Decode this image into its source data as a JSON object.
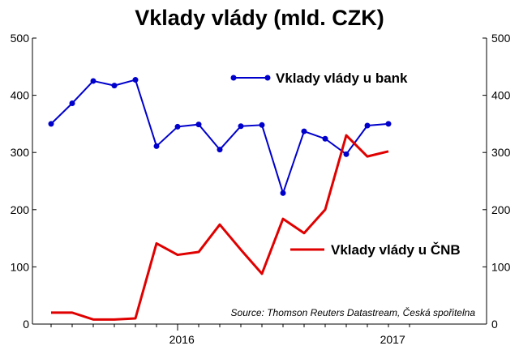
{
  "chart_data": {
    "type": "line",
    "title": "Vklady vlády (mld. CZK)",
    "xlabel": "",
    "ylabel": "",
    "ylim": [
      0,
      500
    ],
    "yticks": [
      0,
      100,
      200,
      300,
      400,
      500
    ],
    "xticks": [
      "2016",
      "2017"
    ],
    "grid": false,
    "source": "Source: Thomson Reuters Datastream, Česká spořitelna",
    "x": [
      "2015-07",
      "2015-08",
      "2015-09",
      "2015-10",
      "2015-11",
      "2015-12",
      "2016-01",
      "2016-02",
      "2016-03",
      "2016-04",
      "2016-05",
      "2016-06",
      "2016-07",
      "2016-08",
      "2016-09",
      "2016-10",
      "2016-11",
      "2016-12"
    ],
    "series": [
      {
        "name": "Vklady vlády u bank",
        "color": "#0000cc",
        "markers": true,
        "values": [
          350,
          386,
          425,
          417,
          427,
          311,
          345,
          349,
          305,
          346,
          348,
          229,
          337,
          324,
          297,
          347,
          350,
          null
        ]
      },
      {
        "name": "Vklady vlády u ČNB",
        "color": "#e00000",
        "markers": false,
        "values": [
          20,
          20,
          8,
          8,
          10,
          141,
          121,
          126,
          174,
          130,
          88,
          184,
          159,
          200,
          330,
          293,
          302,
          null
        ]
      }
    ]
  }
}
